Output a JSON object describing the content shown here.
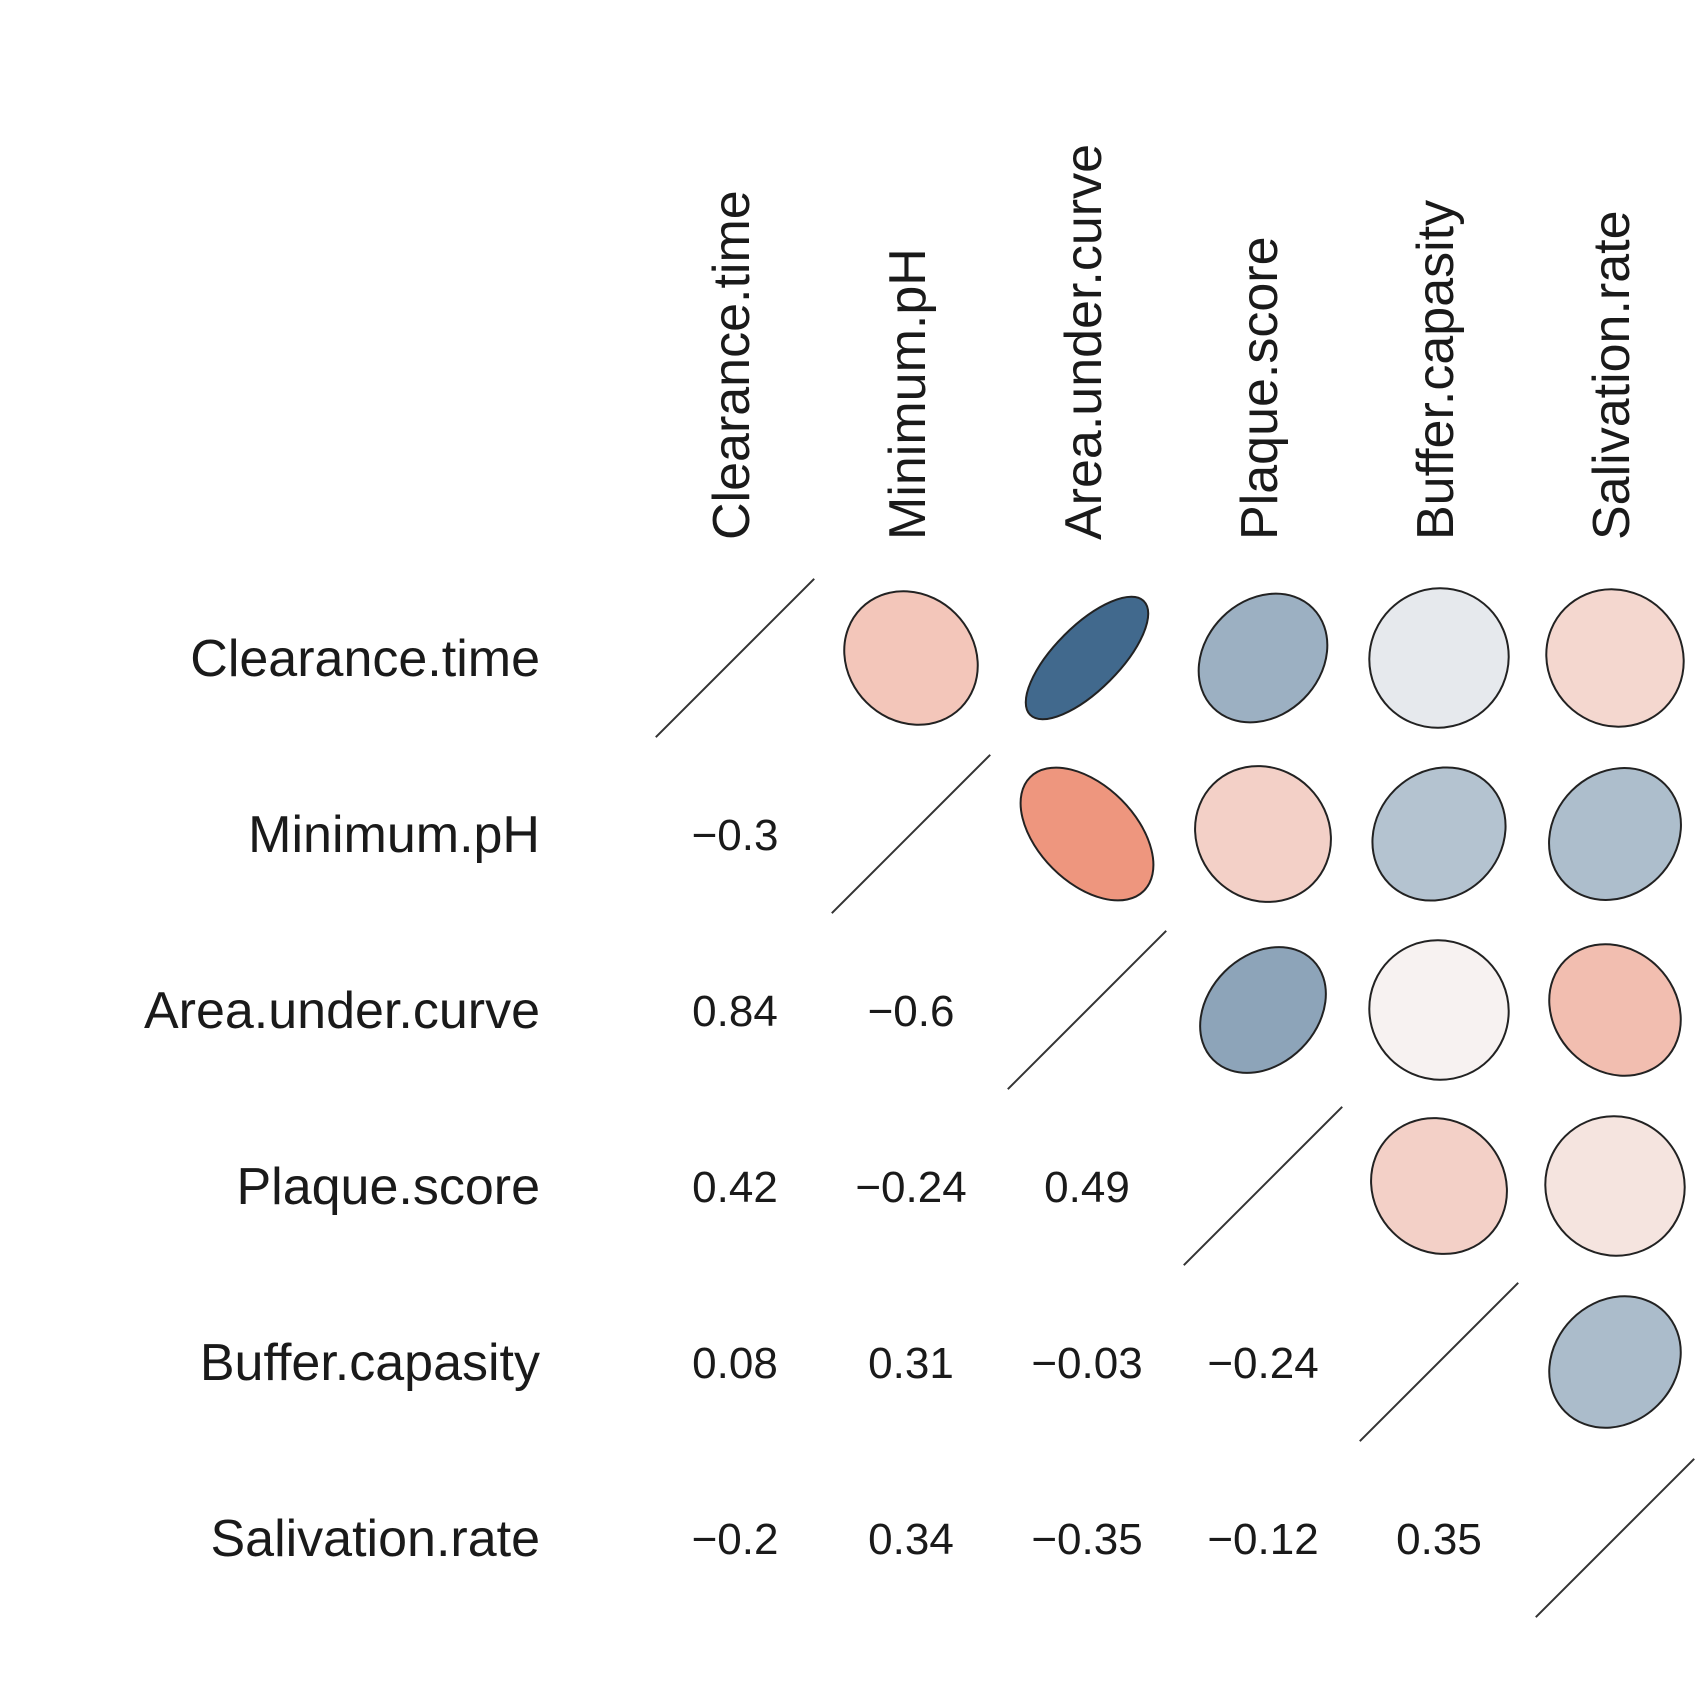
{
  "chart_data": {
    "type": "heatmap",
    "subtype": "correlation-matrix",
    "variables": [
      "Clearance.time",
      "Minimum.pH",
      "Area.under.curve",
      "Plaque.score",
      "Buffer.capasity",
      "Salivation.rate"
    ],
    "lower_triangle": "numbers",
    "upper_triangle": "ellipses",
    "diagonal": "slash",
    "color_scale": {
      "negative": "#e8552d",
      "zero": "#f7f7f7",
      "positive": "#1e4e79",
      "range": [
        -1,
        1
      ]
    },
    "matrix": [
      [
        1.0,
        -0.3,
        0.84,
        0.42,
        0.08,
        -0.2
      ],
      [
        -0.3,
        1.0,
        -0.6,
        -0.24,
        0.31,
        0.34
      ],
      [
        0.84,
        -0.6,
        1.0,
        0.49,
        -0.03,
        -0.35
      ],
      [
        0.42,
        -0.24,
        0.49,
        1.0,
        -0.24,
        -0.12
      ],
      [
        0.08,
        0.31,
        -0.03,
        -0.24,
        1.0,
        0.35
      ],
      [
        -0.2,
        0.34,
        -0.35,
        -0.12,
        0.35,
        1.0
      ]
    ],
    "labels_lower": [
      [
        "",
        "",
        "",
        "",
        "",
        ""
      ],
      [
        "−0.3",
        "",
        "",
        "",
        "",
        ""
      ],
      [
        "0.84",
        "−0.6",
        "",
        "",
        "",
        ""
      ],
      [
        "0.42",
        "−0.24",
        "0.49",
        "",
        "",
        ""
      ],
      [
        "0.08",
        "0.31",
        "−0.03",
        "−0.24",
        "",
        ""
      ],
      [
        "−0.2",
        "0.34",
        "−0.35",
        "−0.12",
        "0.35",
        ""
      ]
    ]
  }
}
